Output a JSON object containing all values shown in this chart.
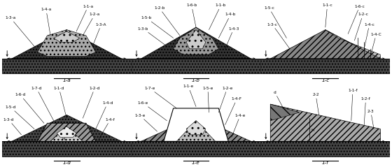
{
  "bg_color": "#ffffff",
  "font_size": 4.2,
  "panels": [
    {
      "label": "1-a"
    },
    {
      "label": "1-b"
    },
    {
      "label": "1-c"
    },
    {
      "label": "1-d"
    },
    {
      "label": "1-e"
    },
    {
      "label": "1-f"
    }
  ]
}
